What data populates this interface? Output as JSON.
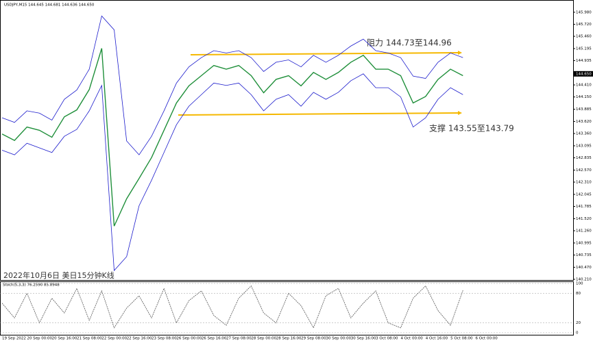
{
  "chart_data": {
    "type": "line",
    "header": "USDJPY,M15  144.645 144.681 144.636 144.650",
    "footer_title": "2022年10月6日 美日15分钟K线",
    "annotations": [
      "阻力 144.73至144.96",
      "支撑 143.55至143.79"
    ],
    "x_labels": [
      "19 Sep 2022",
      "20 Sep 00:00",
      "20 Sep 16:00",
      "21 Sep 08:00",
      "22 Sep 00:00",
      "22 Sep 16:00",
      "23 Sep 08:00",
      "26 Sep 00:00",
      "26 Sep 16:00",
      "27 Sep 08:00",
      "28 Sep 00:00",
      "28 Sep 16:00",
      "29 Sep 08:00",
      "30 Sep 00:00",
      "30 Sep 16:00",
      "3 Oct 08:00",
      "4 Oct 00:00",
      "4 Oct 16:00",
      "5 Oct 08:00",
      "6 Oct 00:00"
    ],
    "series": [
      {
        "name": "USDJPY",
        "color": "#1f8f3a",
        "values": [
          143.35,
          143.21,
          143.5,
          143.43,
          143.28,
          143.72,
          143.87,
          144.31,
          145.2,
          141.36,
          141.95,
          142.39,
          142.84,
          143.43,
          144.02,
          144.39,
          144.61,
          144.83,
          144.75,
          144.83,
          144.61,
          144.24,
          144.53,
          144.61,
          144.39,
          144.68,
          144.53,
          144.68,
          144.9,
          145.05,
          144.75,
          144.75,
          144.61,
          144.02,
          144.16,
          144.53,
          144.75,
          144.61
        ]
      },
      {
        "name": "Upper band",
        "color": "#1a1acc",
        "values": [
          143.7,
          143.6,
          143.85,
          143.8,
          143.65,
          144.1,
          144.3,
          144.75,
          145.9,
          145.6,
          143.2,
          142.9,
          143.3,
          143.85,
          144.45,
          144.8,
          145.0,
          145.15,
          145.1,
          145.15,
          145.0,
          144.7,
          144.9,
          144.95,
          144.8,
          145.05,
          144.9,
          145.05,
          145.25,
          145.4,
          145.15,
          145.1,
          145.0,
          144.6,
          144.55,
          144.9,
          145.1,
          145.0
        ]
      },
      {
        "name": "Lower band",
        "color": "#1a1acc",
        "values": [
          143.0,
          142.9,
          143.15,
          143.05,
          142.95,
          143.3,
          143.45,
          143.85,
          144.4,
          140.4,
          140.7,
          141.8,
          142.35,
          142.95,
          143.55,
          143.95,
          144.2,
          144.45,
          144.4,
          144.45,
          144.2,
          143.85,
          144.1,
          144.2,
          143.95,
          144.25,
          144.1,
          144.25,
          144.5,
          144.65,
          144.35,
          144.35,
          144.15,
          143.5,
          143.7,
          144.1,
          144.35,
          144.2
        ]
      }
    ],
    "last_price": {
      "value": 144.65,
      "label": "144.650"
    },
    "ylim": [
      140.18,
      146.23
    ],
    "yticks": [
      {
        "value": 145.98,
        "label": "145.980"
      },
      {
        "value": 145.72,
        "label": "145.720"
      },
      {
        "value": 145.46,
        "label": "145.460"
      },
      145.195,
      144.935,
      {
        "value": 144.67,
        "label": "144.670"
      },
      {
        "value": 144.41,
        "label": "144.410"
      },
      {
        "value": 144.15,
        "label": "144.150"
      },
      143.885,
      {
        "value": 143.62,
        "label": "143.620"
      },
      {
        "value": 143.36,
        "label": "143.360"
      },
      143.095,
      142.835,
      {
        "value": 142.57,
        "label": "142.570"
      },
      {
        "value": 142.31,
        "label": "142.310"
      },
      142.045,
      141.785,
      {
        "value": 141.52,
        "label": "141.520"
      },
      {
        "value": 141.26,
        "label": "141.260"
      },
      140.995,
      140.735,
      {
        "value": 140.47,
        "label": "140.470"
      },
      {
        "value": 140.21,
        "label": "140.210"
      }
    ],
    "indicator": {
      "title": "Stoch(5,3,3) 76.2590 85.8948",
      "color": "#555555",
      "values": [
        60,
        30,
        80,
        20,
        70,
        40,
        90,
        25,
        85,
        10,
        50,
        75,
        30,
        90,
        20,
        65,
        85,
        35,
        15,
        70,
        95,
        40,
        20,
        80,
        55,
        10,
        75,
        90,
        30,
        60,
        85,
        20,
        10,
        70,
        95,
        45,
        15,
        86
      ],
      "ylim": [
        0,
        100
      ],
      "yticks": [
        100,
        80,
        20,
        0
      ]
    }
  }
}
